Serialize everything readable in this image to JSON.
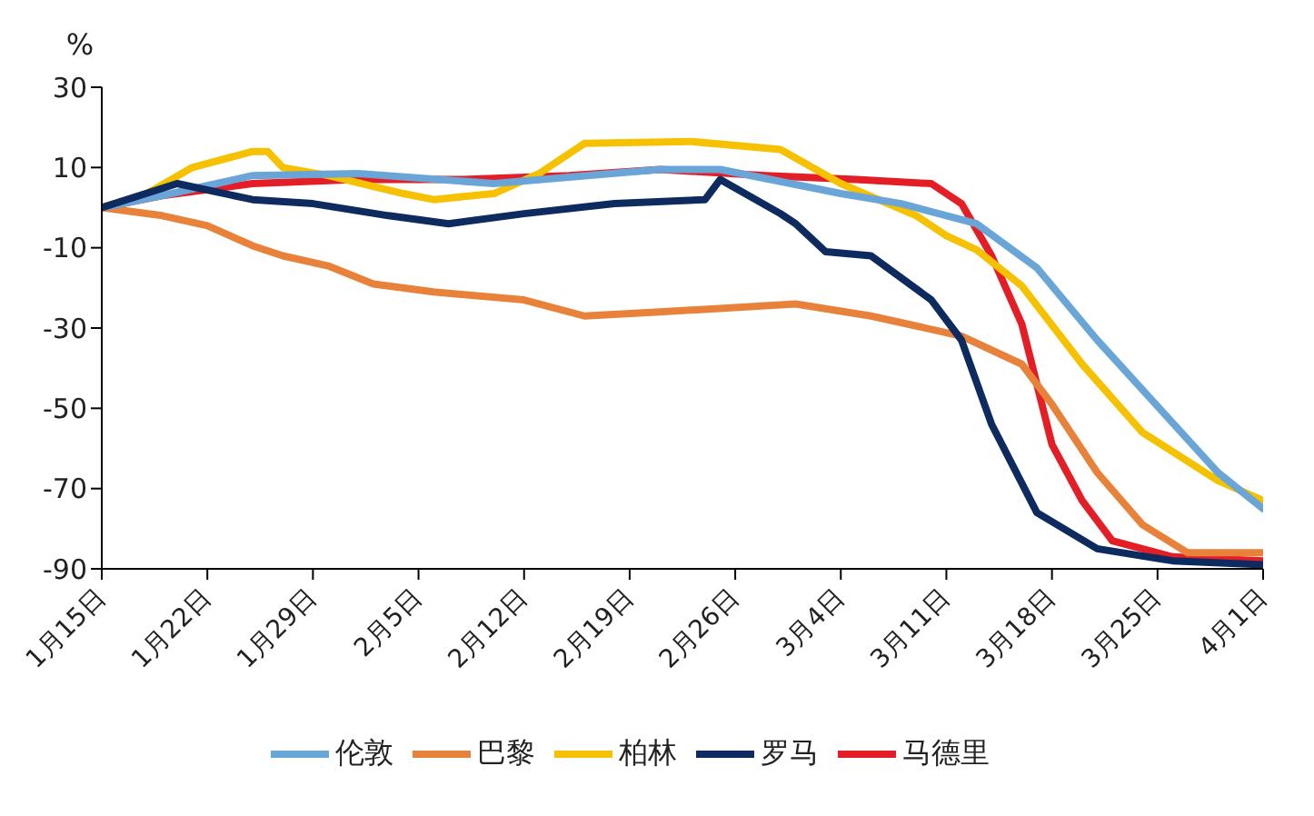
{
  "chart_data": {
    "type": "line",
    "ylabel": "%",
    "xlim": [
      "--01-15",
      "--04-01"
    ],
    "xticks": [
      {
        "value": "--01-15",
        "label": "1月15日"
      },
      {
        "value": "--01-22",
        "label": "1月22日"
      },
      {
        "value": "--01-29",
        "label": "1月29日"
      },
      {
        "value": "--02-05",
        "label": "2月5日"
      },
      {
        "value": "--02-12",
        "label": "2月12日"
      },
      {
        "value": "--02-19",
        "label": "2月19日"
      },
      {
        "value": "--02-26",
        "label": "2月26日"
      },
      {
        "value": "--03-04",
        "label": "3月4日"
      },
      {
        "value": "--03-11",
        "label": "3月11日"
      },
      {
        "value": "--03-18",
        "label": "3月18日"
      },
      {
        "value": "--03-25",
        "label": "3月25日"
      },
      {
        "value": "--04-01",
        "label": "4月1日"
      }
    ],
    "ylim": [
      -90,
      30
    ],
    "yticks": [
      -90,
      -70,
      -50,
      -30,
      -10,
      10,
      30
    ],
    "grid": false,
    "legend": "bottom",
    "marker": "none",
    "line_style": "solid",
    "series": [
      {
        "name": "马德里",
        "color": "#e41e26",
        "x": [
          "--01-15",
          "--01-19",
          "--01-25",
          "--02-01",
          "--02-08",
          "--02-15",
          "--02-21",
          "--02-28",
          "--03-05",
          "--03-10",
          "--03-12",
          "--03-14",
          "--03-16",
          "--03-18",
          "--03-20",
          "--03-22",
          "--03-26",
          "--04-01"
        ],
        "values": [
          0,
          3,
          6,
          7,
          7,
          8,
          9.5,
          8,
          7,
          6,
          1,
          -12,
          -29,
          -59,
          -73,
          -83,
          -87,
          -88
        ]
      },
      {
        "name": "巴黎",
        "color": "#e8823a",
        "x": [
          "--01-15",
          "--01-19",
          "--01-22",
          "--01-25",
          "--01-27",
          "--01-30",
          "--02-02",
          "--02-06",
          "--02-12",
          "--02-16",
          "--02-21",
          "--03-01",
          "--03-06",
          "--03-12",
          "--03-16",
          "--03-18",
          "--03-21",
          "--03-24",
          "--03-27",
          "--04-01"
        ],
        "values": [
          0,
          -2,
          -4.5,
          -9.5,
          -12,
          -14.5,
          -19,
          -21,
          -23,
          -27,
          -26,
          -24,
          -27,
          -32,
          -39,
          -49,
          -66,
          -79,
          -86,
          -86
        ]
      },
      {
        "name": "柏林",
        "color": "#f5c100",
        "x": [
          "--01-15",
          "--01-18",
          "--01-21",
          "--01-25",
          "--01-26",
          "--01-27",
          "--01-30",
          "--02-04",
          "--02-06",
          "--02-10",
          "--02-13",
          "--02-16",
          "--02-23",
          "--02-29",
          "--03-04",
          "--03-09",
          "--03-11",
          "--03-13",
          "--03-16",
          "--03-20",
          "--03-24",
          "--03-29",
          "--04-01"
        ],
        "values": [
          0,
          3.5,
          10,
          14,
          14,
          10,
          8,
          3.5,
          2,
          3.5,
          8.5,
          16,
          16.5,
          14.5,
          6,
          -2,
          -7,
          -10.5,
          -19.5,
          -39,
          -56,
          -68,
          -73
        ]
      },
      {
        "name": "伦敦",
        "color": "#6aa5d8",
        "x": [
          "--01-15",
          "--01-19",
          "--01-25",
          "--02-01",
          "--02-10",
          "--02-21",
          "--02-25",
          "--03-04",
          "--03-08",
          "--03-13",
          "--03-17",
          "--03-21",
          "--03-25",
          "--03-29",
          "--04-01"
        ],
        "values": [
          0,
          3,
          8,
          8.5,
          6,
          9.5,
          9.5,
          3.5,
          1,
          -4,
          -15,
          -33,
          -49.5,
          -66,
          -75
        ]
      },
      {
        "name": "罗马",
        "color": "#0d2b5e",
        "x": [
          "--01-15",
          "--01-20",
          "--01-25",
          "--01-29",
          "--02-03",
          "--02-07",
          "--02-12",
          "--02-18",
          "--02-24",
          "--02-25",
          "--02-29",
          "--03-01",
          "--03-03",
          "--03-06",
          "--03-10",
          "--03-12",
          "--03-14",
          "--03-17",
          "--03-21",
          "--03-26",
          "--04-01"
        ],
        "values": [
          0,
          6,
          2,
          1,
          -2,
          -4,
          -1.5,
          1,
          2,
          7,
          -1.5,
          -4,
          -11,
          -12,
          -23,
          -33,
          -54,
          -76,
          -85,
          -88,
          -89
        ]
      }
    ]
  }
}
